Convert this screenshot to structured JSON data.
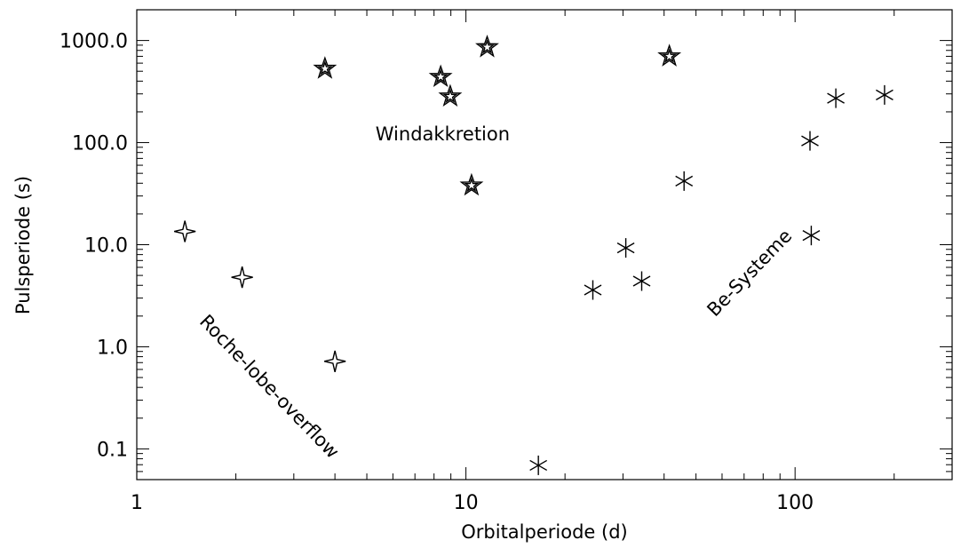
{
  "chart_data": {
    "type": "scatter",
    "xlabel": "Orbitalperiode (d)",
    "ylabel": "Pulsperiode (s)",
    "xscale": "log",
    "yscale": "log",
    "xlim": [
      1,
      300
    ],
    "ylim": [
      0.05,
      2000
    ],
    "grid": false,
    "x_ticks": [
      {
        "value": 1,
        "label": "1"
      },
      {
        "value": 10,
        "label": "10"
      },
      {
        "value": 100,
        "label": "100"
      }
    ],
    "y_ticks": [
      {
        "value": 0.1,
        "label": "0.1"
      },
      {
        "value": 1,
        "label": "1.0"
      },
      {
        "value": 10,
        "label": "10.0"
      },
      {
        "value": 100,
        "label": "100.0"
      },
      {
        "value": 1000,
        "label": "1000.0"
      }
    ],
    "series": [
      {
        "marker": "four-point-star",
        "points": [
          {
            "x": 1.4,
            "y": 13.5
          },
          {
            "x": 2.09,
            "y": 4.8
          },
          {
            "x": 4.0,
            "y": 0.72
          }
        ]
      },
      {
        "marker": "five-point-star",
        "points": [
          {
            "x": 3.73,
            "y": 530
          },
          {
            "x": 8.38,
            "y": 440
          },
          {
            "x": 8.96,
            "y": 283
          },
          {
            "x": 10.4,
            "y": 38
          },
          {
            "x": 11.6,
            "y": 860
          },
          {
            "x": 41.5,
            "y": 700
          }
        ]
      },
      {
        "marker": "asterisk",
        "points": [
          {
            "x": 16.6,
            "y": 0.069
          },
          {
            "x": 24.3,
            "y": 3.6
          },
          {
            "x": 30.6,
            "y": 9.3
          },
          {
            "x": 34.2,
            "y": 4.4
          },
          {
            "x": 46.0,
            "y": 42
          },
          {
            "x": 111,
            "y": 104
          },
          {
            "x": 112,
            "y": 12.3
          },
          {
            "x": 133,
            "y": 272
          },
          {
            "x": 187,
            "y": 293
          }
        ]
      }
    ],
    "annotations": [
      {
        "text": "Windakkretion",
        "x": 8.5,
        "y": 105,
        "rotation": 0
      },
      {
        "text": "Roche-lobe-overflow",
        "x": 2.45,
        "y": 0.37,
        "rotation": 46
      },
      {
        "text": "Be-Systeme",
        "x": 75,
        "y": 4.8,
        "rotation": -46
      }
    ]
  }
}
